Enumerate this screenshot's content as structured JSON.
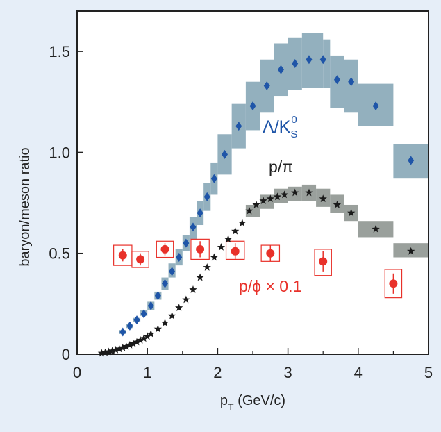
{
  "colors": {
    "background": "#e6eef8",
    "plot_background": "#ffffff",
    "lambda_marker": "#1f55a8",
    "lambda_band": "#93b0be",
    "proton_marker": "#1a1a1a",
    "proton_band": "#9aa09c",
    "phi_marker": "#e8312a",
    "phi_box": "#e8312a"
  },
  "chart_data": {
    "type": "scatter",
    "title": "",
    "xlabel": "p_T (GeV/c)",
    "ylabel": "baryon/meson ratio",
    "xlim": [
      0,
      5
    ],
    "ylim": [
      0,
      1.7
    ],
    "xticks": [
      "0",
      "1",
      "2",
      "3",
      "4",
      "5"
    ],
    "yticks": [
      "0",
      "0.5",
      "1.0",
      "1.5"
    ],
    "grid": false,
    "legend": "none",
    "series": [
      {
        "key": "lambda",
        "label_display": "Λ/K",
        "label_sub": "S",
        "label_sup": "0",
        "marker": "diamond",
        "x": [
          0.65,
          0.75,
          0.85,
          0.95,
          1.05,
          1.15,
          1.25,
          1.35,
          1.45,
          1.55,
          1.65,
          1.75,
          1.85,
          1.95,
          2.1,
          2.3,
          2.5,
          2.7,
          2.9,
          3.1,
          3.3,
          3.5,
          3.7,
          3.9,
          4.25,
          4.75
        ],
        "y": [
          0.11,
          0.14,
          0.17,
          0.2,
          0.24,
          0.29,
          0.35,
          0.41,
          0.48,
          0.55,
          0.63,
          0.7,
          0.78,
          0.87,
          0.99,
          1.13,
          1.23,
          1.33,
          1.41,
          1.44,
          1.46,
          1.46,
          1.36,
          1.35,
          1.23,
          0.96
        ],
        "band": [
          {
            "x0": 0.6,
            "x1": 0.7,
            "y0": 0.1,
            "y1": 0.12
          },
          {
            "x0": 0.7,
            "x1": 0.8,
            "y0": 0.13,
            "y1": 0.15
          },
          {
            "x0": 0.8,
            "x1": 0.9,
            "y0": 0.16,
            "y1": 0.18
          },
          {
            "x0": 0.9,
            "x1": 1.0,
            "y0": 0.19,
            "y1": 0.22
          },
          {
            "x0": 1.0,
            "x1": 1.1,
            "y0": 0.22,
            "y1": 0.26
          },
          {
            "x0": 1.1,
            "x1": 1.2,
            "y0": 0.27,
            "y1": 0.31
          },
          {
            "x0": 1.2,
            "x1": 1.3,
            "y0": 0.32,
            "y1": 0.38
          },
          {
            "x0": 1.3,
            "x1": 1.4,
            "y0": 0.38,
            "y1": 0.45
          },
          {
            "x0": 1.4,
            "x1": 1.5,
            "y0": 0.44,
            "y1": 0.52
          },
          {
            "x0": 1.5,
            "x1": 1.6,
            "y0": 0.51,
            "y1": 0.59
          },
          {
            "x0": 1.6,
            "x1": 1.7,
            "y0": 0.57,
            "y1": 0.68
          },
          {
            "x0": 1.7,
            "x1": 1.8,
            "y0": 0.64,
            "y1": 0.76
          },
          {
            "x0": 1.8,
            "x1": 1.9,
            "y0": 0.71,
            "y1": 0.85
          },
          {
            "x0": 1.9,
            "x1": 2.0,
            "y0": 0.79,
            "y1": 0.95
          },
          {
            "x0": 2.0,
            "x1": 2.2,
            "y0": 0.89,
            "y1": 1.09
          },
          {
            "x0": 2.2,
            "x1": 2.4,
            "y0": 1.02,
            "y1": 1.24
          },
          {
            "x0": 2.4,
            "x1": 2.6,
            "y0": 1.11,
            "y1": 1.35
          },
          {
            "x0": 2.6,
            "x1": 2.8,
            "y0": 1.2,
            "y1": 1.46
          },
          {
            "x0": 2.8,
            "x1": 3.0,
            "y0": 1.28,
            "y1": 1.54
          },
          {
            "x0": 3.0,
            "x1": 3.2,
            "y0": 1.31,
            "y1": 1.57
          },
          {
            "x0": 3.2,
            "x1": 3.5,
            "y0": 1.32,
            "y1": 1.59
          },
          {
            "x0": 3.5,
            "x1": 3.6,
            "y0": 1.32,
            "y1": 1.56
          },
          {
            "x0": 3.6,
            "x1": 3.8,
            "y0": 1.22,
            "y1": 1.48
          },
          {
            "x0": 3.8,
            "x1": 4.0,
            "y0": 1.2,
            "y1": 1.46
          },
          {
            "x0": 4.0,
            "x1": 4.5,
            "y0": 1.13,
            "y1": 1.34
          },
          {
            "x0": 4.5,
            "x1": 5.0,
            "y0": 0.87,
            "y1": 1.04
          }
        ]
      },
      {
        "key": "proton",
        "label_display": "p/π",
        "marker": "star",
        "x": [
          0.35,
          0.4,
          0.45,
          0.5,
          0.55,
          0.6,
          0.65,
          0.7,
          0.75,
          0.8,
          0.85,
          0.9,
          0.95,
          1.0,
          1.05,
          1.15,
          1.25,
          1.35,
          1.45,
          1.55,
          1.65,
          1.75,
          1.85,
          1.95,
          2.05,
          2.15,
          2.25,
          2.35,
          2.45,
          2.55,
          2.65,
          2.75,
          2.85,
          2.95,
          3.1,
          3.3,
          3.5,
          3.7,
          3.9,
          4.25,
          4.75
        ],
        "y": [
          0.005,
          0.008,
          0.012,
          0.016,
          0.021,
          0.026,
          0.032,
          0.038,
          0.045,
          0.052,
          0.06,
          0.069,
          0.078,
          0.088,
          0.1,
          0.125,
          0.155,
          0.19,
          0.23,
          0.27,
          0.32,
          0.38,
          0.43,
          0.48,
          0.53,
          0.57,
          0.61,
          0.65,
          0.71,
          0.74,
          0.76,
          0.77,
          0.78,
          0.79,
          0.8,
          0.8,
          0.77,
          0.74,
          0.7,
          0.62,
          0.51
        ],
        "band": [
          {
            "x0": 2.4,
            "x1": 2.6,
            "y0": 0.68,
            "y1": 0.74
          },
          {
            "x0": 2.6,
            "x1": 2.8,
            "y0": 0.72,
            "y1": 0.79
          },
          {
            "x0": 2.8,
            "x1": 3.0,
            "y0": 0.75,
            "y1": 0.82
          },
          {
            "x0": 3.0,
            "x1": 3.2,
            "y0": 0.76,
            "y1": 0.83
          },
          {
            "x0": 3.2,
            "x1": 3.4,
            "y0": 0.76,
            "y1": 0.84
          },
          {
            "x0": 3.4,
            "x1": 3.6,
            "y0": 0.73,
            "y1": 0.82
          },
          {
            "x0": 3.6,
            "x1": 3.8,
            "y0": 0.7,
            "y1": 0.79
          },
          {
            "x0": 3.8,
            "x1": 4.0,
            "y0": 0.66,
            "y1": 0.74
          },
          {
            "x0": 4.0,
            "x1": 4.5,
            "y0": 0.58,
            "y1": 0.66
          },
          {
            "x0": 4.5,
            "x1": 5.0,
            "y0": 0.48,
            "y1": 0.55
          }
        ]
      },
      {
        "key": "phi",
        "label_display": "p/ϕ × 0.1",
        "marker": "circle",
        "x": [
          0.65,
          0.9,
          1.25,
          1.75,
          2.25,
          2.75,
          3.5,
          4.5
        ],
        "y": [
          0.49,
          0.47,
          0.52,
          0.52,
          0.51,
          0.5,
          0.46,
          0.35
        ],
        "err": [
          0.03,
          0.03,
          0.03,
          0.04,
          0.04,
          0.04,
          0.05,
          0.05
        ],
        "box": [
          {
            "x0": 0.52,
            "x1": 0.78,
            "y0": 0.44,
            "y1": 0.54
          },
          {
            "x0": 0.78,
            "x1": 1.02,
            "y0": 0.43,
            "y1": 0.51
          },
          {
            "x0": 1.13,
            "x1": 1.37,
            "y0": 0.48,
            "y1": 0.56
          },
          {
            "x0": 1.62,
            "x1": 1.88,
            "y0": 0.47,
            "y1": 0.57
          },
          {
            "x0": 2.12,
            "x1": 2.38,
            "y0": 0.47,
            "y1": 0.56
          },
          {
            "x0": 2.62,
            "x1": 2.88,
            "y0": 0.46,
            "y1": 0.54
          },
          {
            "x0": 3.38,
            "x1": 3.62,
            "y0": 0.39,
            "y1": 0.52
          },
          {
            "x0": 4.38,
            "x1": 4.62,
            "y0": 0.28,
            "y1": 0.42
          }
        ]
      }
    ]
  }
}
